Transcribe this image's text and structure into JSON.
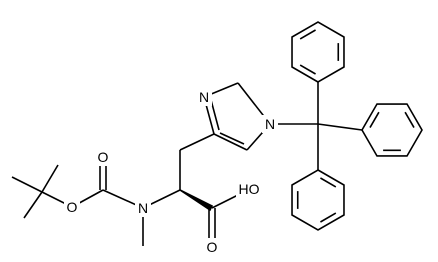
{
  "atoms": {
    "imidazole_n3": "N",
    "imidazole_n1": "N",
    "boc_carbonyl_o": "O",
    "boc_ester_o": "O",
    "amide_n": "N",
    "acid_oh": "HO",
    "acid_carbonyl_o": "O"
  }
}
